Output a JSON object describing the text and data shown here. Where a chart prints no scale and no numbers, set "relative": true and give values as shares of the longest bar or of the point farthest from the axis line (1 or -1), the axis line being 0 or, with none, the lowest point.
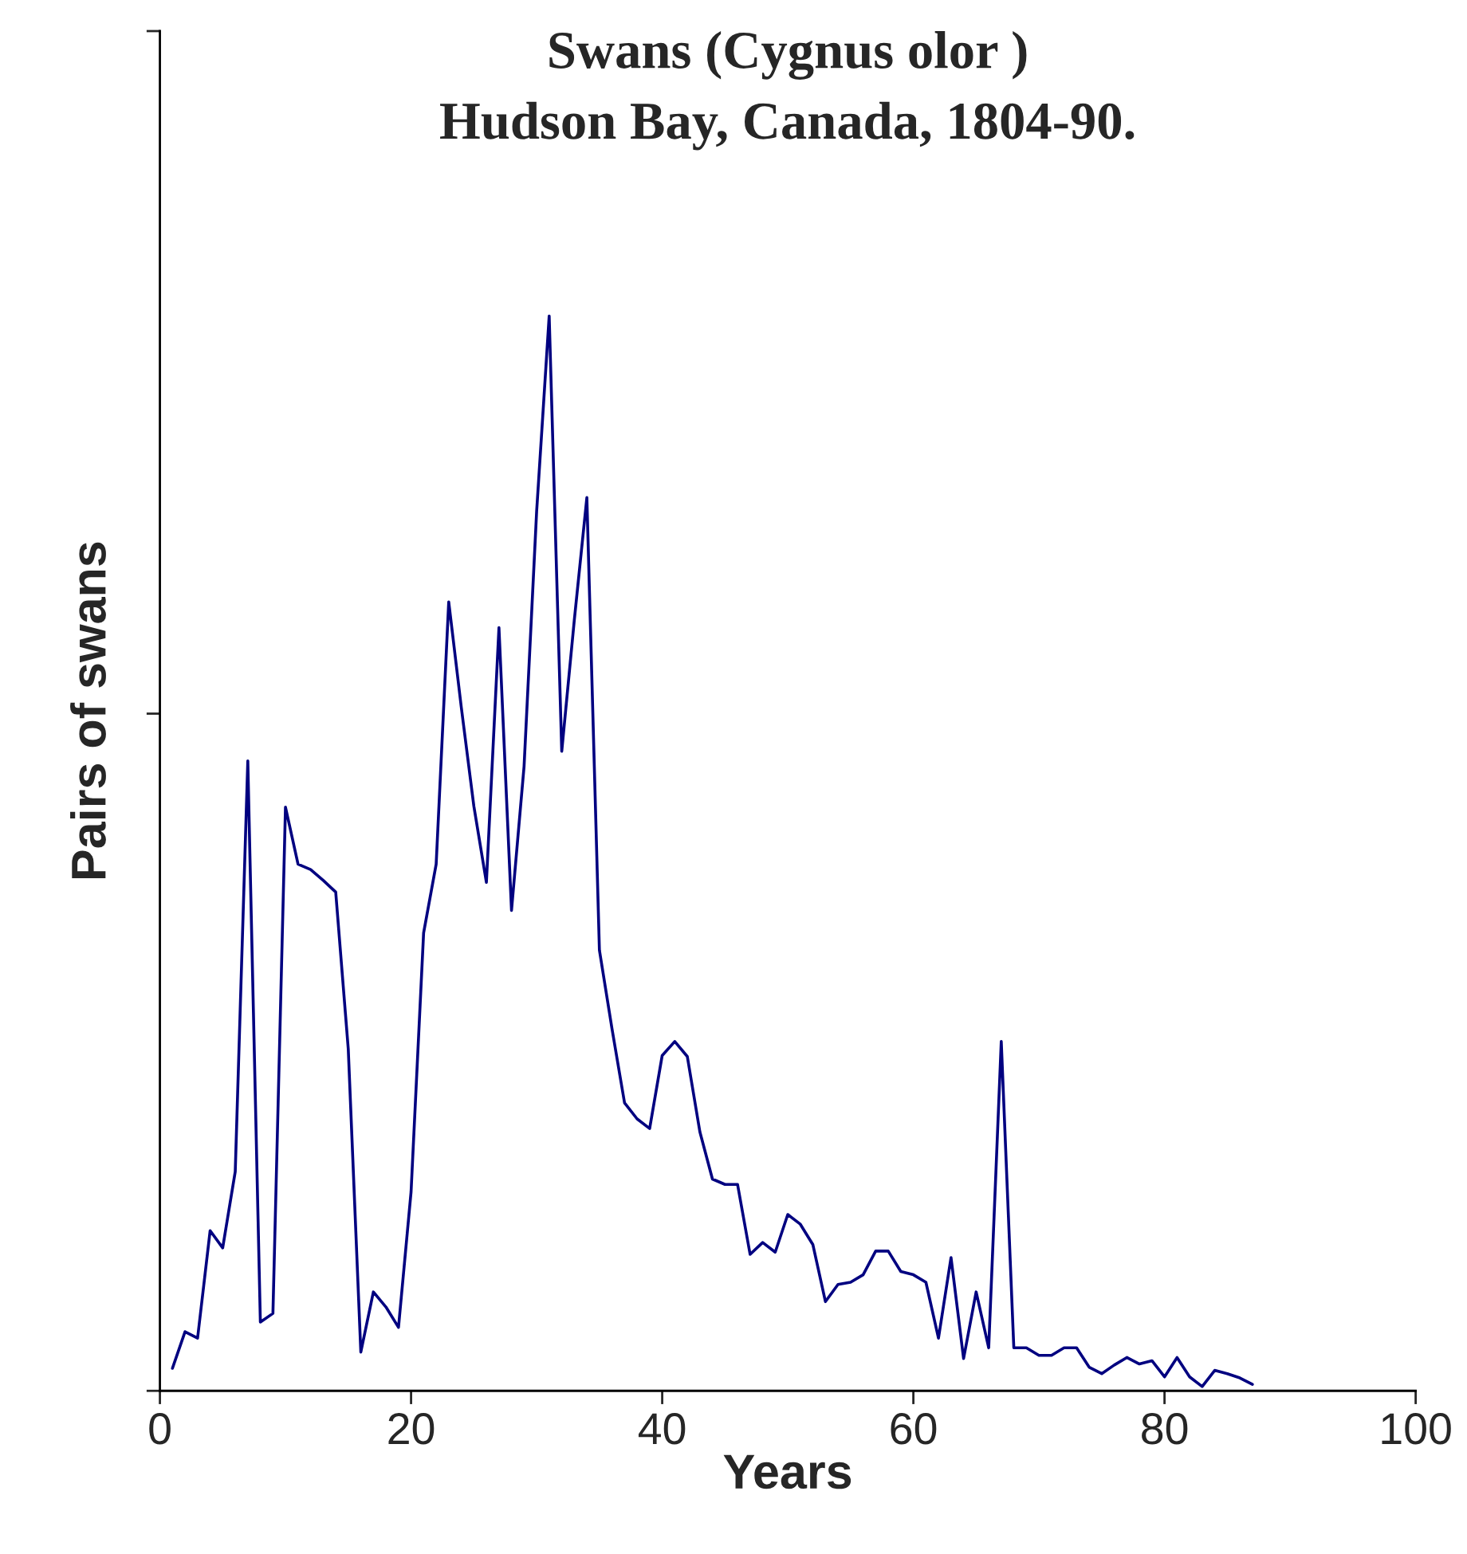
{
  "chart_data": {
    "type": "line",
    "title": "Swans (Cygnus olor )\nHudson Bay, Canada, 1804-90.",
    "xlabel": "Years",
    "ylabel": "Pairs of swans",
    "relative": true,
    "tick_labels": "x",
    "grid": false,
    "marker": "none",
    "line_style": "solid",
    "xlim": [
      0,
      100
    ],
    "xticks": [
      0,
      20,
      40,
      60,
      80,
      100
    ],
    "x": [
      1,
      2,
      3,
      4,
      5,
      6,
      7,
      8,
      9,
      10,
      11,
      12,
      13,
      14,
      15,
      16,
      17,
      18,
      19,
      20,
      21,
      22,
      23,
      24,
      25,
      26,
      27,
      28,
      29,
      30,
      31,
      32,
      33,
      34,
      35,
      36,
      37,
      38,
      39,
      40,
      41,
      42,
      43,
      44,
      45,
      46,
      47,
      48,
      49,
      50,
      51,
      52,
      53,
      54,
      55,
      56,
      57,
      58,
      59,
      60,
      61,
      62,
      63,
      64,
      65,
      66,
      67,
      68,
      69,
      70,
      71,
      72,
      73,
      74,
      75,
      76,
      77,
      78,
      79,
      80,
      81,
      82,
      83,
      84,
      85,
      86,
      87
    ],
    "series": [
      {
        "color": "#000080",
        "values": [
          0.021,
          0.055,
          0.049,
          0.149,
          0.133,
          0.204,
          0.586,
          0.064,
          0.072,
          0.543,
          0.49,
          0.485,
          0.475,
          0.464,
          0.318,
          0.036,
          0.092,
          0.078,
          0.059,
          0.185,
          0.426,
          0.49,
          0.734,
          0.636,
          0.544,
          0.473,
          0.71,
          0.447,
          0.581,
          0.818,
          1,
          0.595,
          0.717,
          0.831,
          0.41,
          0.337,
          0.268,
          0.253,
          0.244,
          0.312,
          0.325,
          0.311,
          0.241,
          0.197,
          0.192,
          0.192,
          0.127,
          0.138,
          0.129,
          0.164,
          0.155,
          0.136,
          0.083,
          0.099,
          0.101,
          0.108,
          0.13,
          0.13,
          0.111,
          0.108,
          0.101,
          0.049,
          0.124,
          0.03,
          0.092,
          0.04,
          0.325,
          0.04,
          0.04,
          0.033,
          0.033,
          0.04,
          0.04,
          0.022,
          0.016,
          0.024,
          0.031,
          0.025,
          0.028,
          0.013,
          0.031,
          0.013,
          0.004,
          0.019,
          0.016,
          0.012,
          0.006
        ]
      }
    ]
  }
}
